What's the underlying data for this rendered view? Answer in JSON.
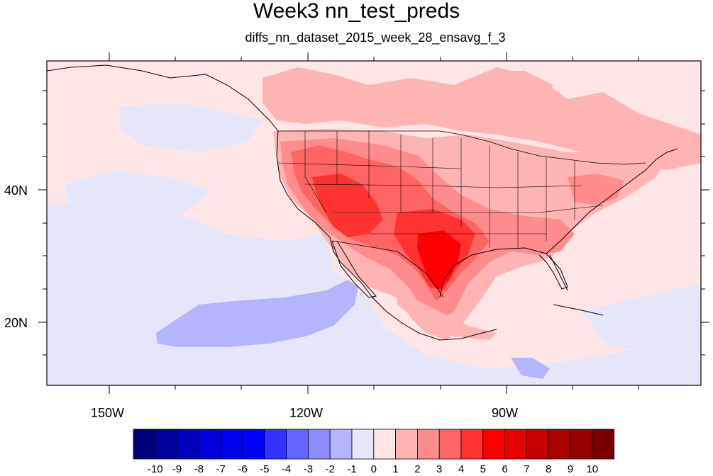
{
  "title": "Week3 nn_test_preds",
  "subtitle": "diffs_nn_dataset_2015_week_28_ensavg_f_3",
  "map": {
    "projection": "cylindrical-equidistant",
    "lon_range": [
      -160,
      -62
    ],
    "lat_range": [
      11,
      59
    ],
    "lon_tick_labels": [
      "150W",
      "120W",
      "90W"
    ],
    "lat_tick_labels": [
      "40N",
      "20N"
    ],
    "features": [
      "coastlines",
      "us-state-boundaries",
      "country-borders"
    ]
  },
  "colorbar": {
    "labels": [
      "-10",
      "-9",
      "-8",
      "-7",
      "-6",
      "-5",
      "-4",
      "-3",
      "-2",
      "-1",
      "0",
      "1",
      "2",
      "3",
      "4",
      "5",
      "6",
      "7",
      "8",
      "9",
      "10"
    ],
    "colors": [
      "#00007a",
      "#00009d",
      "#0000be",
      "#0000dc",
      "#0000f2",
      "#0000ff",
      "#3232ff",
      "#6464ff",
      "#8c8cff",
      "#b4b4ff",
      "#e6e6fa",
      "#ffe6e6",
      "#ffb4b4",
      "#ff8c8c",
      "#ff6464",
      "#ff3232",
      "#ff0000",
      "#e60000",
      "#c80000",
      "#aa0000",
      "#960000",
      "#7a0000"
    ]
  },
  "field_colors": {
    "ocean_light_blue": "#e6e6fa",
    "ocean_blue": "#b4b4ff",
    "neutral_pink": "#ffe6e6",
    "warm_light": "#ffb4b4",
    "warm_mid": "#ff8c8c",
    "warm_strong": "#ff6464",
    "hot": "#ff3232",
    "hottest": "#ff0000"
  }
}
